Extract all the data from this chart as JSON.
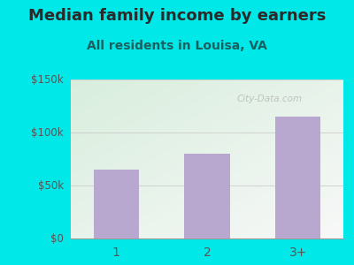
{
  "title": "Median family income by earners",
  "subtitle": "All residents in Louisa, VA",
  "categories": [
    "1",
    "2",
    "3+"
  ],
  "values": [
    65000,
    80000,
    115000
  ],
  "bar_color": "#b8a8d0",
  "outer_bg": "#00e8e8",
  "plot_bg_topleft": "#d8eedd",
  "plot_bg_bottomright": "#f0f0f0",
  "title_color": "#2a2a2a",
  "subtitle_color": "#1a6060",
  "tick_color": "#555555",
  "ytick_labels": [
    "$0",
    "$50k",
    "$100k",
    "$150k"
  ],
  "ytick_values": [
    0,
    50000,
    100000,
    150000
  ],
  "ylim": [
    0,
    150000
  ],
  "watermark": "City-Data.com",
  "title_fontsize": 13,
  "subtitle_fontsize": 10,
  "grid_color": "#cccccc"
}
